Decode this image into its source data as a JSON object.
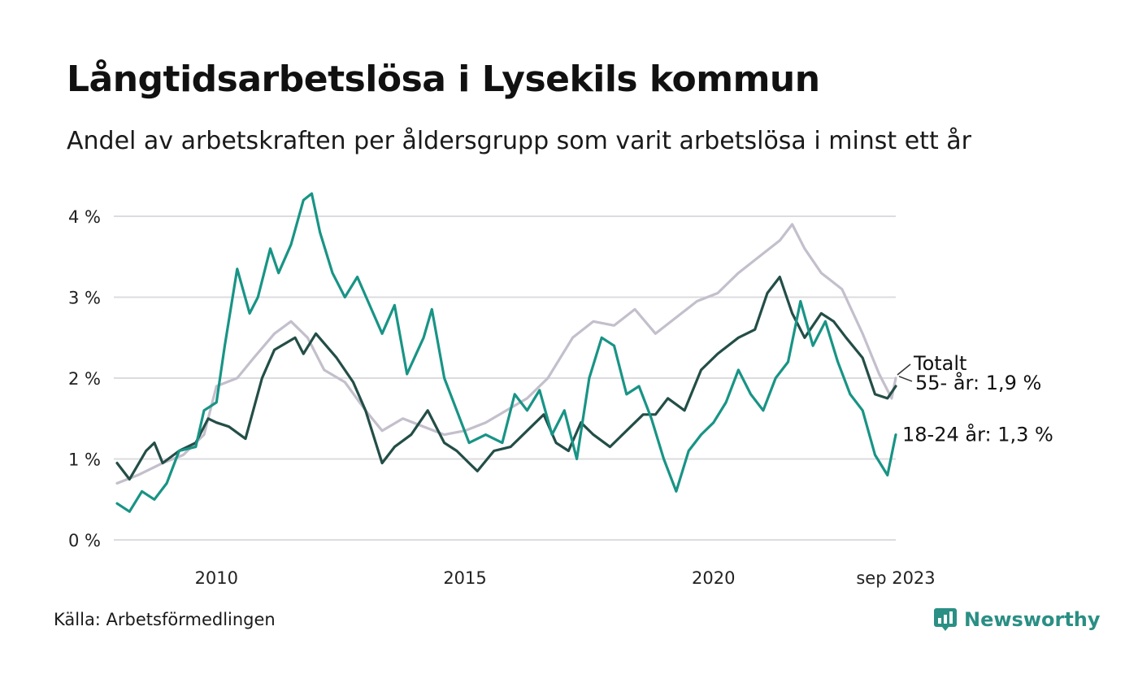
{
  "header": {
    "title": "Långtidsarbetslösa i Lysekils kommun",
    "subtitle": "Andel av arbetskraften per åldersgrupp som varit arbetslösa i minst ett år"
  },
  "footer": {
    "source": "Källa: Arbetsförmedlingen",
    "brand": "Newsworthy"
  },
  "colors": {
    "totalt": "#c3bfcc",
    "age55": "#234e47",
    "age1824": "#189485",
    "grid": "#dcdce0",
    "brand": "#2a8f84"
  },
  "chart_data": {
    "type": "line",
    "title": "Långtidsarbetslösa i Lysekils kommun",
    "subtitle": "Andel av arbetskraften per åldersgrupp som varit arbetslösa i minst ett år",
    "xlabel": "",
    "ylabel": "",
    "x_range": [
      "2008-01",
      "2023-09"
    ],
    "ylim": [
      0,
      4.3
    ],
    "yticks": [
      0,
      1,
      2,
      3,
      4
    ],
    "ytick_labels": [
      "0 %",
      "1 %",
      "2 %",
      "3 %",
      "4 %"
    ],
    "xticks": [
      {
        "date": "2010-01",
        "label": "2010"
      },
      {
        "date": "2015-01",
        "label": "2015"
      },
      {
        "date": "2020-01",
        "label": "2020"
      },
      {
        "date": "2023-09",
        "label": "sep 2023"
      }
    ],
    "grid": true,
    "series": [
      {
        "key": "totalt",
        "name": "Totalt",
        "label": "Totalt",
        "points": [
          [
            "2008-01",
            0.7
          ],
          [
            "2008-06",
            0.8
          ],
          [
            "2008-12",
            0.95
          ],
          [
            "2009-05",
            1.05
          ],
          [
            "2009-10",
            1.3
          ],
          [
            "2010-01",
            1.9
          ],
          [
            "2010-06",
            2.0
          ],
          [
            "2010-10",
            2.25
          ],
          [
            "2011-03",
            2.55
          ],
          [
            "2011-07",
            2.7
          ],
          [
            "2011-11",
            2.5
          ],
          [
            "2012-03",
            2.1
          ],
          [
            "2012-08",
            1.95
          ],
          [
            "2013-01",
            1.6
          ],
          [
            "2013-05",
            1.35
          ],
          [
            "2013-10",
            1.5
          ],
          [
            "2014-03",
            1.4
          ],
          [
            "2014-08",
            1.3
          ],
          [
            "2015-01",
            1.35
          ],
          [
            "2015-06",
            1.45
          ],
          [
            "2015-11",
            1.6
          ],
          [
            "2016-04",
            1.75
          ],
          [
            "2016-09",
            2.0
          ],
          [
            "2017-03",
            2.5
          ],
          [
            "2017-08",
            2.7
          ],
          [
            "2018-01",
            2.65
          ],
          [
            "2018-06",
            2.85
          ],
          [
            "2018-11",
            2.55
          ],
          [
            "2019-04",
            2.75
          ],
          [
            "2019-09",
            2.95
          ],
          [
            "2020-02",
            3.05
          ],
          [
            "2020-07",
            3.3
          ],
          [
            "2020-12",
            3.5
          ],
          [
            "2021-05",
            3.7
          ],
          [
            "2021-08",
            3.9
          ],
          [
            "2021-11",
            3.6
          ],
          [
            "2022-03",
            3.3
          ],
          [
            "2022-08",
            3.1
          ],
          [
            "2023-01",
            2.55
          ],
          [
            "2023-05",
            2.05
          ],
          [
            "2023-08",
            1.75
          ],
          [
            "2023-09",
            2.0
          ]
        ]
      },
      {
        "key": "age55",
        "name": "55- år",
        "label": "55- år: 1,9 %",
        "last_value": 1.9,
        "points": [
          [
            "2008-01",
            0.95
          ],
          [
            "2008-04",
            0.75
          ],
          [
            "2008-08",
            1.1
          ],
          [
            "2008-10",
            1.2
          ],
          [
            "2008-12",
            0.95
          ],
          [
            "2009-04",
            1.1
          ],
          [
            "2009-08",
            1.2
          ],
          [
            "2009-11",
            1.5
          ],
          [
            "2010-01",
            1.45
          ],
          [
            "2010-04",
            1.4
          ],
          [
            "2010-08",
            1.25
          ],
          [
            "2010-12",
            2.0
          ],
          [
            "2011-03",
            2.35
          ],
          [
            "2011-08",
            2.5
          ],
          [
            "2011-10",
            2.3
          ],
          [
            "2012-01",
            2.55
          ],
          [
            "2012-06",
            2.25
          ],
          [
            "2012-10",
            1.95
          ],
          [
            "2013-01",
            1.6
          ],
          [
            "2013-05",
            0.95
          ],
          [
            "2013-08",
            1.15
          ],
          [
            "2013-12",
            1.3
          ],
          [
            "2014-04",
            1.6
          ],
          [
            "2014-08",
            1.2
          ],
          [
            "2014-11",
            1.1
          ],
          [
            "2015-02",
            0.95
          ],
          [
            "2015-04",
            0.85
          ],
          [
            "2015-08",
            1.1
          ],
          [
            "2015-12",
            1.15
          ],
          [
            "2016-04",
            1.35
          ],
          [
            "2016-08",
            1.55
          ],
          [
            "2016-11",
            1.2
          ],
          [
            "2017-02",
            1.1
          ],
          [
            "2017-05",
            1.45
          ],
          [
            "2017-08",
            1.3
          ],
          [
            "2017-12",
            1.15
          ],
          [
            "2018-04",
            1.35
          ],
          [
            "2018-08",
            1.55
          ],
          [
            "2018-11",
            1.55
          ],
          [
            "2019-02",
            1.75
          ],
          [
            "2019-06",
            1.6
          ],
          [
            "2019-10",
            2.1
          ],
          [
            "2020-02",
            2.3
          ],
          [
            "2020-07",
            2.5
          ],
          [
            "2020-11",
            2.6
          ],
          [
            "2021-02",
            3.05
          ],
          [
            "2021-05",
            3.25
          ],
          [
            "2021-08",
            2.8
          ],
          [
            "2021-11",
            2.5
          ],
          [
            "2022-03",
            2.8
          ],
          [
            "2022-06",
            2.7
          ],
          [
            "2022-09",
            2.5
          ],
          [
            "2023-01",
            2.25
          ],
          [
            "2023-04",
            1.8
          ],
          [
            "2023-07",
            1.75
          ],
          [
            "2023-09",
            1.9
          ]
        ]
      },
      {
        "key": "age1824",
        "name": "18-24 år",
        "label": "18-24 år: 1,3 %",
        "last_value": 1.3,
        "points": [
          [
            "2008-01",
            0.45
          ],
          [
            "2008-04",
            0.35
          ],
          [
            "2008-07",
            0.6
          ],
          [
            "2008-10",
            0.5
          ],
          [
            "2009-01",
            0.7
          ],
          [
            "2009-04",
            1.1
          ],
          [
            "2009-08",
            1.15
          ],
          [
            "2009-10",
            1.6
          ],
          [
            "2010-01",
            1.7
          ],
          [
            "2010-03",
            2.4
          ],
          [
            "2010-06",
            3.35
          ],
          [
            "2010-09",
            2.8
          ],
          [
            "2010-11",
            3.0
          ],
          [
            "2011-02",
            3.6
          ],
          [
            "2011-04",
            3.3
          ],
          [
            "2011-07",
            3.65
          ],
          [
            "2011-10",
            4.2
          ],
          [
            "2011-12",
            4.28
          ],
          [
            "2012-02",
            3.8
          ],
          [
            "2012-05",
            3.3
          ],
          [
            "2012-08",
            3.0
          ],
          [
            "2012-11",
            3.25
          ],
          [
            "2013-02",
            2.9
          ],
          [
            "2013-05",
            2.55
          ],
          [
            "2013-08",
            2.9
          ],
          [
            "2013-11",
            2.05
          ],
          [
            "2014-03",
            2.5
          ],
          [
            "2014-05",
            2.85
          ],
          [
            "2014-08",
            2.0
          ],
          [
            "2014-11",
            1.6
          ],
          [
            "2015-02",
            1.2
          ],
          [
            "2015-06",
            1.3
          ],
          [
            "2015-10",
            1.2
          ],
          [
            "2016-01",
            1.8
          ],
          [
            "2016-04",
            1.6
          ],
          [
            "2016-07",
            1.85
          ],
          [
            "2016-10",
            1.3
          ],
          [
            "2017-01",
            1.6
          ],
          [
            "2017-04",
            1.0
          ],
          [
            "2017-07",
            2.0
          ],
          [
            "2017-10",
            2.5
          ],
          [
            "2018-01",
            2.4
          ],
          [
            "2018-04",
            1.8
          ],
          [
            "2018-07",
            1.9
          ],
          [
            "2018-10",
            1.5
          ],
          [
            "2019-01",
            1.0
          ],
          [
            "2019-04",
            0.6
          ],
          [
            "2019-07",
            1.1
          ],
          [
            "2019-10",
            1.3
          ],
          [
            "2020-01",
            1.45
          ],
          [
            "2020-04",
            1.7
          ],
          [
            "2020-07",
            2.1
          ],
          [
            "2020-10",
            1.8
          ],
          [
            "2021-01",
            1.6
          ],
          [
            "2021-04",
            2.0
          ],
          [
            "2021-07",
            2.2
          ],
          [
            "2021-10",
            2.95
          ],
          [
            "2022-01",
            2.4
          ],
          [
            "2022-04",
            2.7
          ],
          [
            "2022-07",
            2.2
          ],
          [
            "2022-10",
            1.8
          ],
          [
            "2023-01",
            1.6
          ],
          [
            "2023-04",
            1.05
          ],
          [
            "2023-07",
            0.8
          ],
          [
            "2023-09",
            1.3
          ]
        ]
      }
    ]
  }
}
